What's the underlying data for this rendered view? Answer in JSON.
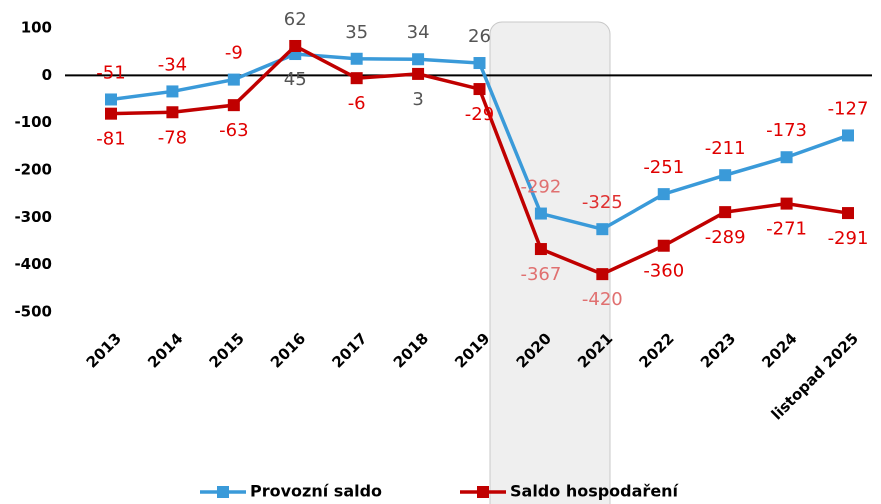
{
  "chart_data": {
    "type": "line",
    "categories": [
      "2013",
      "2014",
      "2015",
      "2016",
      "2017",
      "2018",
      "2019",
      "2020",
      "2021",
      "2022",
      "2023",
      "2024",
      "listopad 2025"
    ],
    "series": [
      {
        "name": "Provozní saldo",
        "color": "#3a9ad9",
        "values": [
          -51,
          -34,
          -9,
          45,
          35,
          34,
          26,
          -292,
          -325,
          -251,
          -211,
          -173,
          -127
        ],
        "label_colors": [
          "#e00000",
          "#e00000",
          "#e00000",
          "#555555",
          "#555555",
          "#555555",
          "#555555",
          "#e07070",
          "#e03030",
          "#e00000",
          "#e00000",
          "#e00000",
          "#e00000"
        ]
      },
      {
        "name": "Saldo hospodaření",
        "color": "#c00000",
        "values": [
          -81,
          -78,
          -63,
          62,
          -6,
          3,
          -29,
          -367,
          -420,
          -360,
          -289,
          -271,
          -291
        ],
        "label_colors": [
          "#e00000",
          "#e00000",
          "#e00000",
          "#555555",
          "#e00000",
          "#555555",
          "#e00000",
          "#e07070",
          "#e07070",
          "#e00000",
          "#e00000",
          "#e00000",
          "#e00000"
        ]
      }
    ],
    "ylim": [
      -500,
      100
    ],
    "yticks": [
      100,
      0,
      -100,
      -200,
      -300,
      -400,
      -500
    ]
  }
}
